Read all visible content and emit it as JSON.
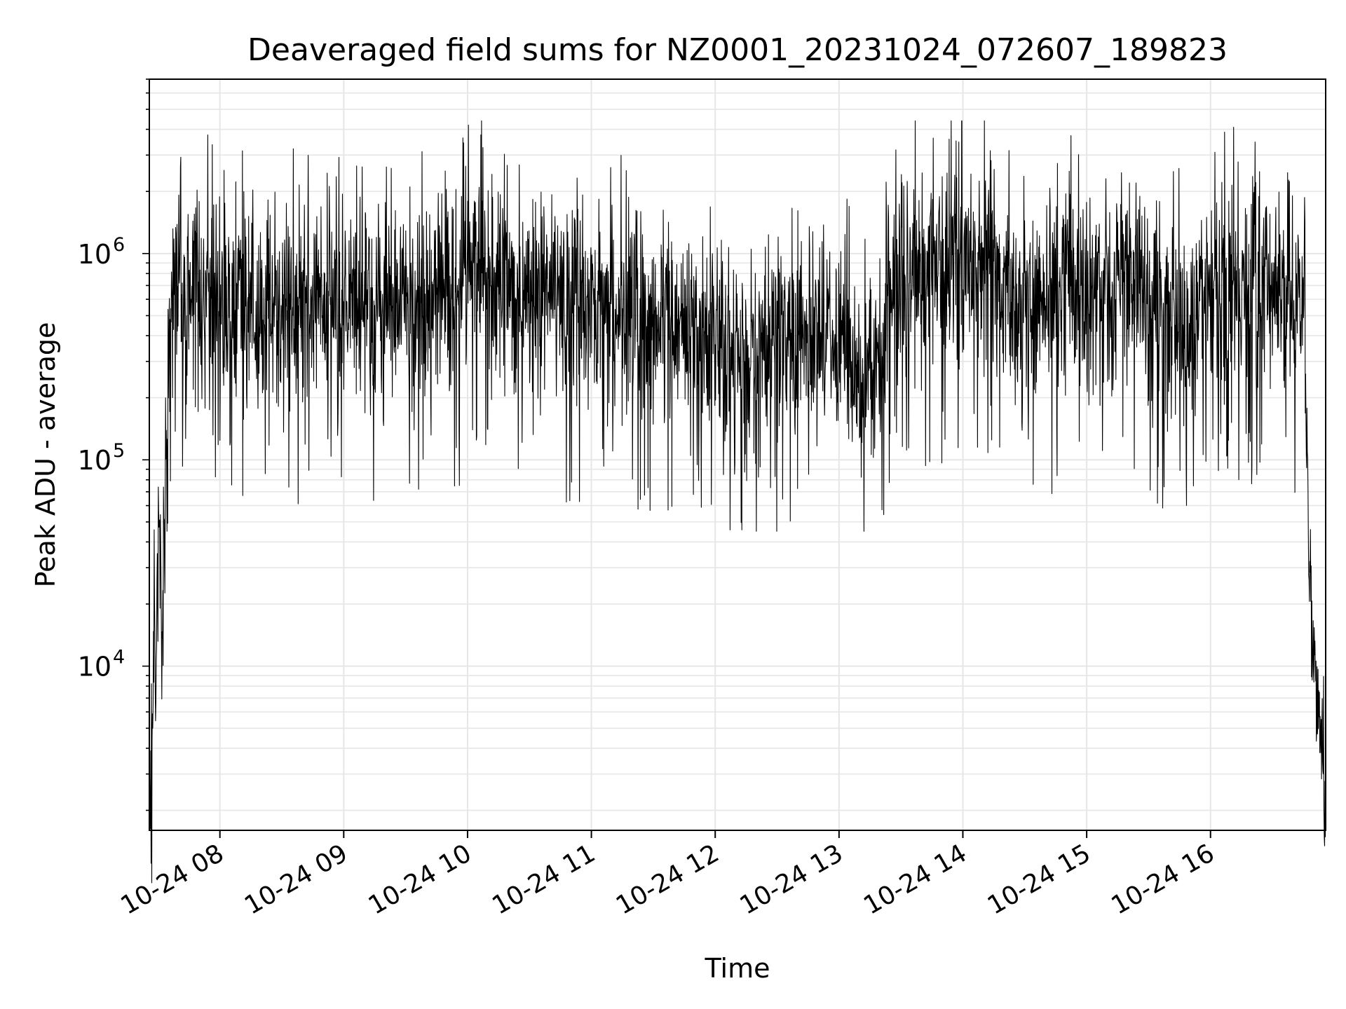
{
  "chart_data": {
    "type": "line",
    "title": "Deaveraged field sums for NZ0001_20231024_072607_189823",
    "xlabel": "Time",
    "ylabel": "Peak ADU - average",
    "x_range": [
      "10-24 07:26",
      "10-24 16:55"
    ],
    "y_scale": "log",
    "ylim": [
      1600,
      7000000
    ],
    "grid": true,
    "grid_color": "#e6e6e6",
    "line_color": "#000000",
    "x_ticks": [
      {
        "label": "10-24 08",
        "hour": 8
      },
      {
        "label": "10-24 09",
        "hour": 9
      },
      {
        "label": "10-24 10",
        "hour": 10
      },
      {
        "label": "10-24 11",
        "hour": 11
      },
      {
        "label": "10-24 12",
        "hour": 12
      },
      {
        "label": "10-24 13",
        "hour": 13
      },
      {
        "label": "10-24 14",
        "hour": 14
      },
      {
        "label": "10-24 15",
        "hour": 15
      },
      {
        "label": "10-24 16",
        "hour": 16
      }
    ],
    "y_ticks": [
      {
        "base": "10",
        "exp": "4",
        "value": 10000
      },
      {
        "base": "10",
        "exp": "5",
        "value": 100000
      },
      {
        "base": "10",
        "exp": "6",
        "value": 1000000
      }
    ],
    "series": [
      {
        "x_hours": [
          7.43,
          7.45,
          7.47,
          7.49,
          7.51,
          7.53,
          7.55,
          7.58,
          7.62,
          7.66,
          7.7,
          7.75,
          7.8,
          7.9,
          8.0,
          8.2,
          8.5,
          9.0,
          9.5,
          9.9,
          10.0,
          10.5,
          11.0,
          11.5,
          12.0,
          12.3,
          12.7,
          13.0,
          13.2,
          13.5,
          14.0,
          14.5,
          15.0,
          15.5,
          15.8,
          16.0,
          16.3,
          16.6,
          16.75,
          16.8,
          16.83,
          16.86,
          16.9,
          16.93
        ],
        "y_values": [
          4000,
          2400,
          18000,
          9000,
          60000,
          11000,
          40000,
          300000,
          500000,
          600000,
          700000,
          650000,
          700000,
          650000,
          600000,
          620000,
          600000,
          550000,
          600000,
          700000,
          800000,
          700000,
          550000,
          500000,
          400000,
          350000,
          450000,
          350000,
          200000,
          900000,
          900000,
          600000,
          600000,
          650000,
          400000,
          700000,
          750000,
          700000,
          600000,
          30000,
          10000,
          8000,
          4000,
          2500
        ],
        "noise_spread_decades": 0.35,
        "spike_min": 45000,
        "spike_max": 4400000
      }
    ]
  }
}
